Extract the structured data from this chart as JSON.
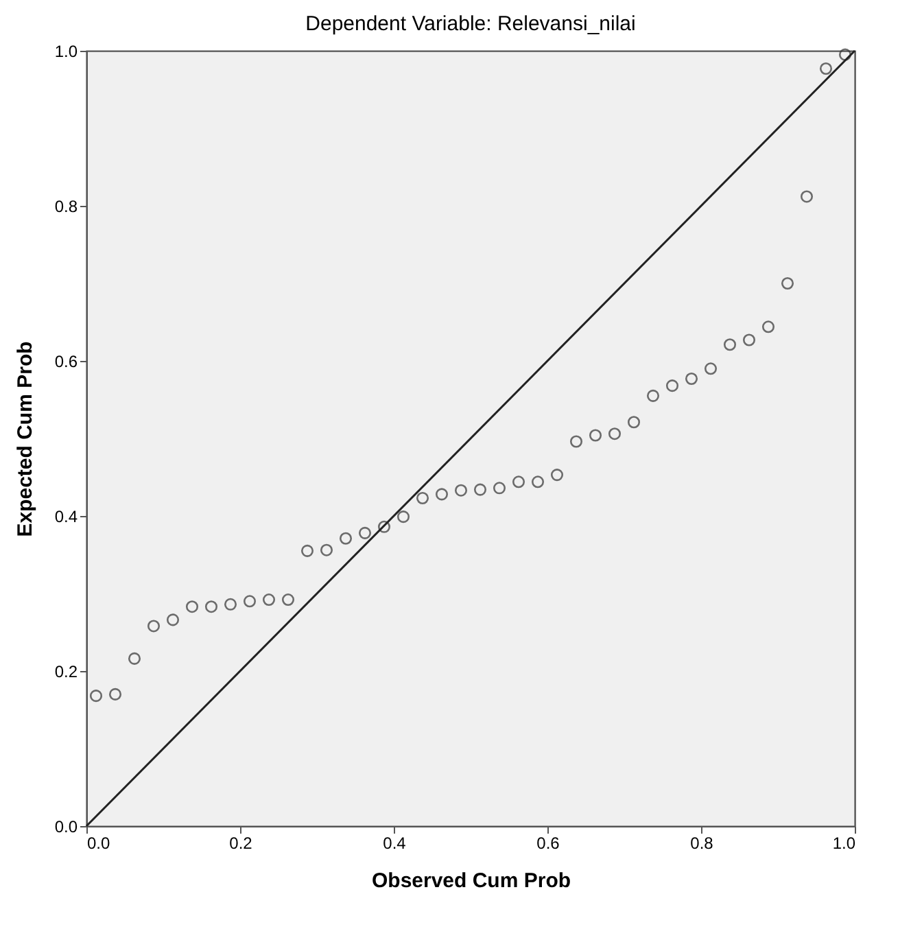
{
  "chart_data": {
    "type": "scatter",
    "title": "Dependent Variable: Relevansi_nilai",
    "xlabel": "Observed Cum Prob",
    "ylabel": "Expected Cum Prob",
    "x": [
      0.0125,
      0.0375,
      0.0625,
      0.0875,
      0.1125,
      0.1375,
      0.1625,
      0.1875,
      0.2125,
      0.2375,
      0.2625,
      0.2875,
      0.3125,
      0.3375,
      0.3625,
      0.3875,
      0.4125,
      0.4375,
      0.4625,
      0.4875,
      0.5125,
      0.5375,
      0.5625,
      0.5875,
      0.6125,
      0.6375,
      0.6625,
      0.6875,
      0.7125,
      0.7375,
      0.7625,
      0.7875,
      0.8125,
      0.8375,
      0.8625,
      0.8875,
      0.9125,
      0.9375,
      0.9625,
      0.9875
    ],
    "series": [
      {
        "color": "#333333",
        "marker": "circle",
        "values": [
          0.168,
          0.17,
          0.216,
          0.258,
          0.266,
          0.283,
          0.283,
          0.286,
          0.29,
          0.292,
          0.292,
          0.355,
          0.356,
          0.371,
          0.378,
          0.386,
          0.399,
          0.423,
          0.428,
          0.433,
          0.434,
          0.436,
          0.444,
          0.444,
          0.453,
          0.496,
          0.504,
          0.506,
          0.521,
          0.555,
          0.568,
          0.577,
          0.59,
          0.621,
          0.627,
          0.644,
          0.7,
          0.812,
          0.977,
          0.995
        ]
      },
      {
        "type": "line",
        "color": "#222222",
        "x": [
          0,
          1
        ],
        "values": [
          0,
          1
        ],
        "line_style": "solid"
      }
    ],
    "xlim": [
      0,
      1
    ],
    "ylim": [
      0,
      1
    ],
    "xticks": [
      {
        "value": 0,
        "label": "0.0"
      },
      {
        "value": 0.2,
        "label": "0.2"
      },
      {
        "value": 0.4,
        "label": "0.4"
      },
      {
        "value": 0.6,
        "label": "0.6"
      },
      {
        "value": 0.8,
        "label": "0.8"
      },
      {
        "value": 1,
        "label": "1.0"
      }
    ],
    "yticks": [
      {
        "value": 0,
        "label": "0.0"
      },
      {
        "value": 0.2,
        "label": "0.2"
      },
      {
        "value": 0.4,
        "label": "0.4"
      },
      {
        "value": 0.6,
        "label": "0.6"
      },
      {
        "value": 0.8,
        "label": "0.8"
      },
      {
        "value": 1,
        "label": "1.0"
      }
    ],
    "grid": false
  }
}
